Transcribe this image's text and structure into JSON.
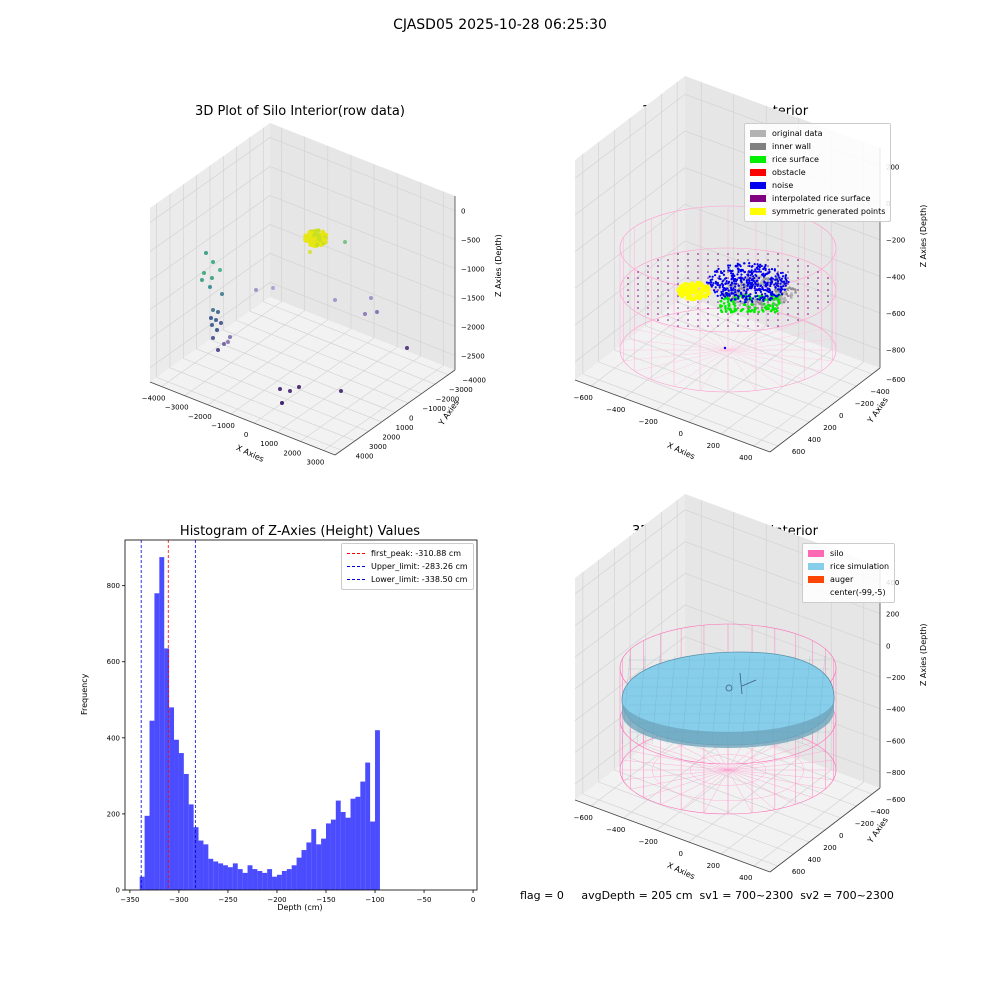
{
  "suptitle": "CJASD05 2025-10-28 06:25:30",
  "footer": "flag = 0     avgDepth = 205 cm  sv1 = 700~2300  sv2 = 700~2300",
  "chart_data": [
    {
      "type": "scatter",
      "title": "3D Plot of Silo Interior(row data)",
      "xlabel": "X Axies",
      "ylabel": "Y Axies",
      "zlabel": "Z Axies (Depth)",
      "x_ticks": [
        "−4000",
        "−3000",
        "−2000",
        "−1000",
        "0",
        "1000",
        "2000",
        "3000"
      ],
      "y_ticks": [
        "−4000",
        "−3000",
        "−2000",
        "−1000",
        "0",
        "1000",
        "2000",
        "3000",
        "4000"
      ],
      "z_ticks": [
        "0",
        "−500",
        "−1000",
        "−1500",
        "−2000",
        "−2500"
      ]
    },
    {
      "type": "scatter",
      "title": "3D classify of Silo Interior",
      "xlabel": "X Axies",
      "ylabel": "Y Axies",
      "zlabel": "Z Axies (Depth)",
      "x_ticks": [
        "−600",
        "−400",
        "−200",
        "0",
        "200",
        "400"
      ],
      "y_ticks": [
        "−600",
        "−400",
        "−200",
        "0",
        "200",
        "400",
        "600"
      ],
      "z_ticks": [
        "200",
        "0",
        "−200",
        "−400",
        "−600",
        "−800"
      ],
      "legend": [
        {
          "label": "original data",
          "color": "#b3b3b3"
        },
        {
          "label": "inner wall",
          "color": "#808080"
        },
        {
          "label": "rice surface",
          "color": "#00ee00"
        },
        {
          "label": "obstacle",
          "color": "#ff0000"
        },
        {
          "label": "noise",
          "color": "#0000ee"
        },
        {
          "label": "interpolated rice surface",
          "color": "#800080"
        },
        {
          "label": "symmetric generated points",
          "color": "#ffff00"
        }
      ]
    },
    {
      "type": "bar",
      "title": "Histogram of Z-Axies (Height) Values",
      "xlabel": "Depth (cm)",
      "ylabel": "Frequency",
      "xlim": [
        -355,
        4
      ],
      "ylim": [
        0,
        920
      ],
      "x_ticks": [
        "−350",
        "−300",
        "−250",
        "−200",
        "−150",
        "−100",
        "−50",
        "0"
      ],
      "x_tick_values": [
        -350,
        -300,
        -250,
        -200,
        -150,
        -100,
        -50,
        0
      ],
      "y_ticks": [
        "0",
        "200",
        "400",
        "600",
        "800"
      ],
      "y_tick_values": [
        0,
        200,
        400,
        600,
        800
      ],
      "bar_color": "#0000ff",
      "bin_start": -340,
      "bin_width": 5,
      "values": [
        35,
        195,
        445,
        780,
        875,
        635,
        480,
        395,
        360,
        305,
        225,
        165,
        130,
        120,
        82,
        75,
        70,
        65,
        60,
        70,
        55,
        45,
        65,
        55,
        50,
        45,
        55,
        35,
        40,
        50,
        55,
        65,
        85,
        105,
        125,
        160,
        120,
        135,
        175,
        185,
        235,
        205,
        190,
        240,
        245,
        285,
        335,
        180,
        420
      ],
      "lines": [
        {
          "label": "first_peak: -310.88 cm",
          "x": -310.88,
          "color": "#ff0000"
        },
        {
          "label": "Upper_limit: -283.26 cm",
          "x": -283.26,
          "color": "#0000cc"
        },
        {
          "label": "Lower_limit: -338.50 cm",
          "x": -338.5,
          "color": "#0000cc"
        }
      ]
    },
    {
      "type": "scatter",
      "title": "3D simulation of Silo Interior",
      "xlabel": "X Axies",
      "ylabel": "Y Axies",
      "zlabel": "Z Axies (Depth)",
      "x_ticks": [
        "−600",
        "−400",
        "−200",
        "0",
        "200",
        "400"
      ],
      "y_ticks": [
        "−600",
        "−400",
        "−200",
        "0",
        "200",
        "400",
        "600"
      ],
      "z_ticks": [
        "400",
        "200",
        "0",
        "−200",
        "−400",
        "−600",
        "−800"
      ],
      "legend": [
        {
          "label": "silo",
          "color": "#ff69b4"
        },
        {
          "label": "rice simulation",
          "color": "#87ceeb"
        },
        {
          "label": "auger",
          "color": "#ff4500"
        },
        {
          "label": "center(-99,-5)",
          "color": ""
        }
      ]
    }
  ]
}
